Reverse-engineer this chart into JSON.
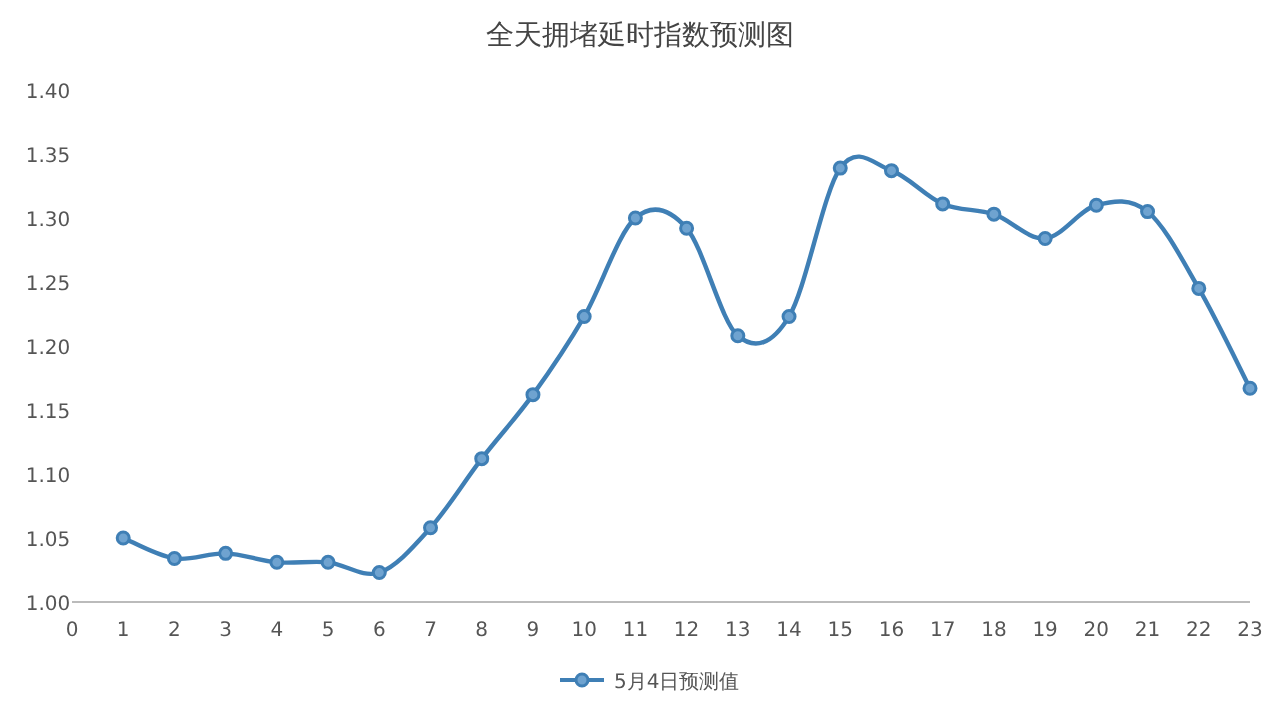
{
  "chart_data": {
    "type": "line",
    "title": "全天拥堵延时指数预测图",
    "x": [
      1,
      2,
      3,
      4,
      5,
      6,
      7,
      8,
      9,
      10,
      11,
      12,
      13,
      14,
      15,
      16,
      17,
      18,
      19,
      20,
      21,
      22,
      23
    ],
    "series": [
      {
        "name": "5月4日预测值",
        "color": "#3f7fb5",
        "values": [
          1.05,
          1.034,
          1.038,
          1.031,
          1.031,
          1.023,
          1.058,
          1.112,
          1.162,
          1.223,
          1.3,
          1.292,
          1.208,
          1.223,
          1.339,
          1.337,
          1.311,
          1.303,
          1.284,
          1.31,
          1.305,
          1.245,
          1.167
        ]
      }
    ],
    "xlim": [
      0,
      23
    ],
    "xticks": [
      0,
      1,
      2,
      3,
      4,
      5,
      6,
      7,
      8,
      9,
      10,
      11,
      12,
      13,
      14,
      15,
      16,
      17,
      18,
      19,
      20,
      21,
      22,
      23
    ],
    "ylim": [
      1.0,
      1.4
    ],
    "yticks": [
      {
        "value": 1.0,
        "label": "1.00"
      },
      {
        "value": 1.05,
        "label": "1.05"
      },
      {
        "value": 1.1,
        "label": "1.10"
      },
      {
        "value": 1.15,
        "label": "1.15"
      },
      {
        "value": 1.2,
        "label": "1.20"
      },
      {
        "value": 1.25,
        "label": "1.25"
      },
      {
        "value": 1.3,
        "label": "1.30"
      },
      {
        "value": 1.35,
        "label": "1.35"
      },
      {
        "value": 1.4,
        "label": "1.40"
      }
    ],
    "marker": "circle",
    "line_style": "solid",
    "legend": "bottom",
    "grid": false
  }
}
